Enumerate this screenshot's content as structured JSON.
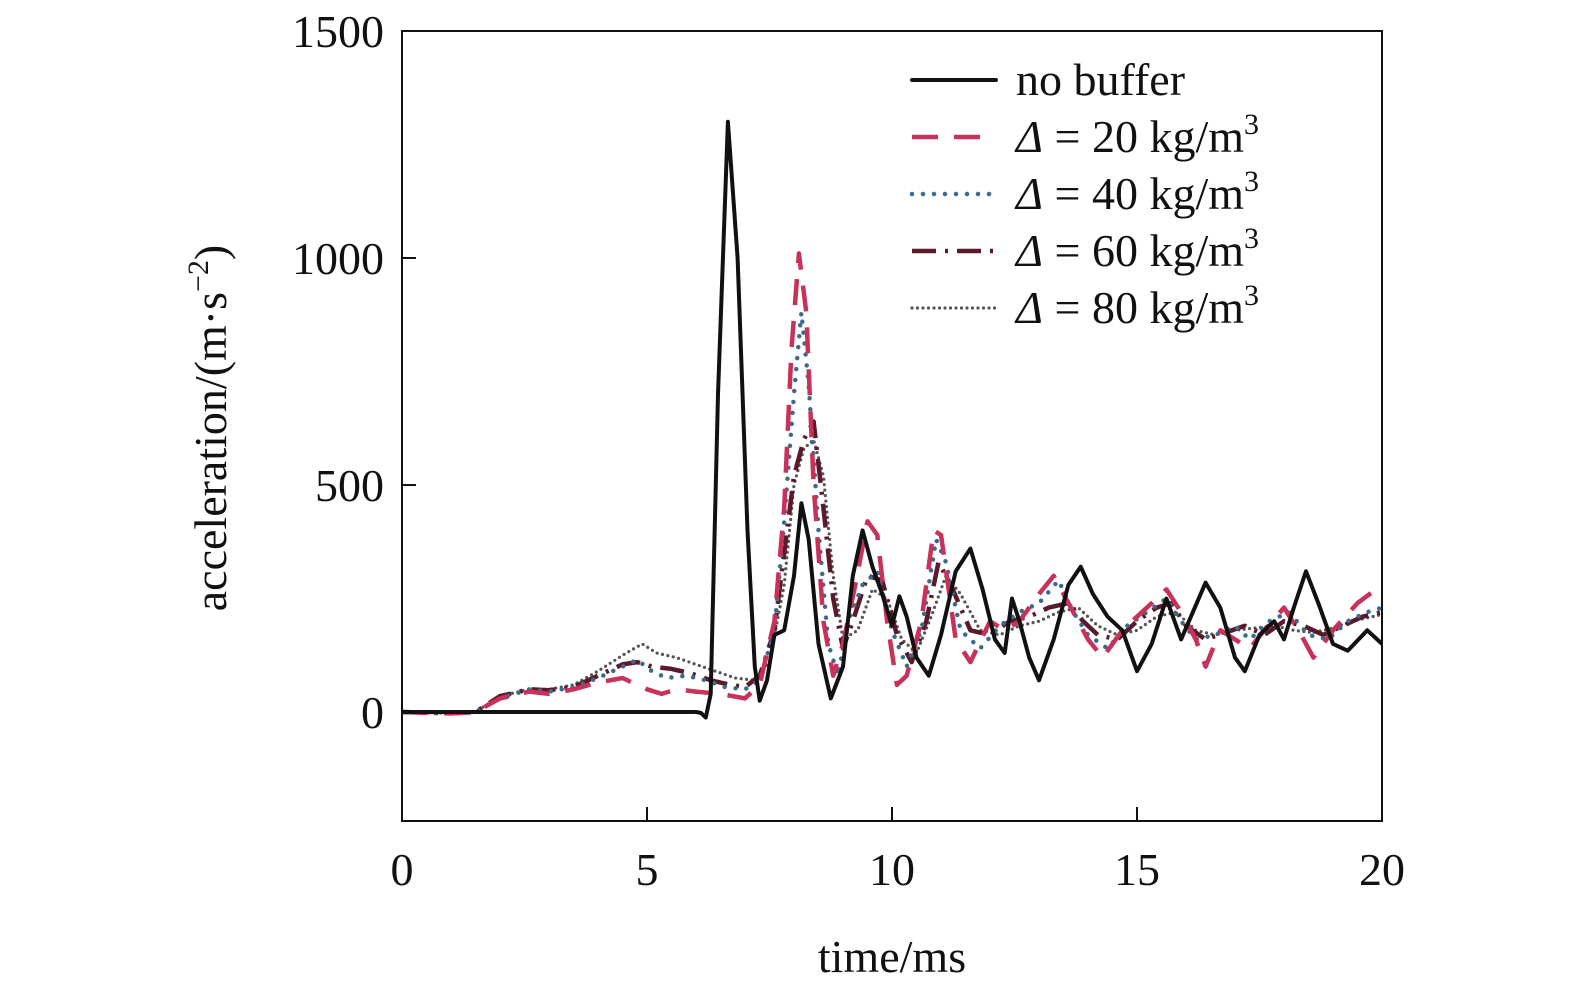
{
  "chart_data": {
    "type": "line",
    "title": "",
    "xlabel": "time/ms",
    "ylabel_text": "acceleration/(m·s",
    "ylabel_sup": "−2",
    "ylabel_close": ")",
    "xlim": [
      0,
      20
    ],
    "ylim": [
      -240,
      1500
    ],
    "x_ticks": [
      0,
      5,
      10,
      15,
      20
    ],
    "y_ticks": [
      0,
      500,
      1000,
      1500
    ],
    "x_tick_labels": [
      "0",
      "5",
      "10",
      "15",
      "20"
    ],
    "y_tick_labels": [
      "0",
      "500",
      "1000",
      "1500"
    ],
    "grid": false,
    "legend_position": "top-right",
    "series": [
      {
        "name": "no buffer",
        "legend_prefix": "",
        "legend_sup": "",
        "color": "#111111",
        "style": "solid",
        "points": [
          [
            0,
            0
          ],
          [
            6,
            0
          ],
          [
            6.1,
            -2
          ],
          [
            6.2,
            -12
          ],
          [
            6.3,
            40
          ],
          [
            6.45,
            700
          ],
          [
            6.65,
            1300
          ],
          [
            6.85,
            1000
          ],
          [
            7.05,
            400
          ],
          [
            7.2,
            100
          ],
          [
            7.3,
            25
          ],
          [
            7.45,
            70
          ],
          [
            7.6,
            170
          ],
          [
            7.8,
            180
          ],
          [
            8.0,
            300
          ],
          [
            8.15,
            460
          ],
          [
            8.3,
            380
          ],
          [
            8.5,
            150
          ],
          [
            8.75,
            30
          ],
          [
            9.0,
            100
          ],
          [
            9.2,
            300
          ],
          [
            9.4,
            400
          ],
          [
            9.6,
            320
          ],
          [
            9.8,
            260
          ],
          [
            10.0,
            190
          ],
          [
            10.15,
            255
          ],
          [
            10.3,
            210
          ],
          [
            10.5,
            120
          ],
          [
            10.75,
            80
          ],
          [
            11.0,
            170
          ],
          [
            11.3,
            310
          ],
          [
            11.6,
            360
          ],
          [
            11.85,
            270
          ],
          [
            12.1,
            160
          ],
          [
            12.3,
            130
          ],
          [
            12.45,
            250
          ],
          [
            12.6,
            200
          ],
          [
            12.8,
            120
          ],
          [
            13.0,
            70
          ],
          [
            13.3,
            160
          ],
          [
            13.6,
            280
          ],
          [
            13.85,
            320
          ],
          [
            14.1,
            260
          ],
          [
            14.4,
            210
          ],
          [
            14.7,
            180
          ],
          [
            15.0,
            90
          ],
          [
            15.3,
            150
          ],
          [
            15.6,
            250
          ],
          [
            15.9,
            160
          ],
          [
            16.1,
            210
          ],
          [
            16.4,
            285
          ],
          [
            16.7,
            230
          ],
          [
            17.0,
            120
          ],
          [
            17.2,
            90
          ],
          [
            17.5,
            170
          ],
          [
            17.8,
            200
          ],
          [
            18.0,
            160
          ],
          [
            18.2,
            230
          ],
          [
            18.45,
            310
          ],
          [
            18.7,
            240
          ],
          [
            19.0,
            150
          ],
          [
            19.3,
            135
          ],
          [
            19.7,
            180
          ],
          [
            20,
            150
          ]
        ]
      },
      {
        "name": " = 20 kg/m",
        "legend_prefix": "Δ",
        "legend_sup": "3",
        "color": "#c8325a",
        "style": "dashed",
        "points": [
          [
            0,
            0
          ],
          [
            1,
            -3
          ],
          [
            1.5,
            0
          ],
          [
            2,
            30
          ],
          [
            2.6,
            45
          ],
          [
            3,
            40
          ],
          [
            3.5,
            50
          ],
          [
            4,
            65
          ],
          [
            4.5,
            75
          ],
          [
            4.8,
            60
          ],
          [
            5,
            50
          ],
          [
            5.3,
            40
          ],
          [
            5.6,
            50
          ],
          [
            6,
            45
          ],
          [
            6.5,
            40
          ],
          [
            7,
            30
          ],
          [
            7.3,
            60
          ],
          [
            7.6,
            200
          ],
          [
            7.8,
            450
          ],
          [
            7.95,
            800
          ],
          [
            8.1,
            1010
          ],
          [
            8.25,
            880
          ],
          [
            8.4,
            500
          ],
          [
            8.6,
            200
          ],
          [
            8.8,
            80
          ],
          [
            9.0,
            150
          ],
          [
            9.25,
            280
          ],
          [
            9.5,
            420
          ],
          [
            9.7,
            390
          ],
          [
            9.9,
            200
          ],
          [
            10.1,
            60
          ],
          [
            10.3,
            80
          ],
          [
            10.6,
            200
          ],
          [
            10.85,
            400
          ],
          [
            11.0,
            390
          ],
          [
            11.3,
            160
          ],
          [
            11.6,
            110
          ],
          [
            12.0,
            200
          ],
          [
            12.3,
            180
          ],
          [
            12.6,
            200
          ],
          [
            13.0,
            260
          ],
          [
            13.3,
            300
          ],
          [
            13.6,
            240
          ],
          [
            14.0,
            160
          ],
          [
            14.3,
            120
          ],
          [
            14.7,
            180
          ],
          [
            15.0,
            210
          ],
          [
            15.3,
            240
          ],
          [
            15.6,
            270
          ],
          [
            15.9,
            220
          ],
          [
            16.2,
            160
          ],
          [
            16.4,
            100
          ],
          [
            16.7,
            180
          ],
          [
            17.0,
            160
          ],
          [
            17.3,
            140
          ],
          [
            17.6,
            180
          ],
          [
            18.0,
            230
          ],
          [
            18.4,
            160
          ],
          [
            18.6,
            120
          ],
          [
            19.0,
            180
          ],
          [
            19.5,
            240
          ],
          [
            20,
            280
          ]
        ]
      },
      {
        "name": " = 40 kg/m",
        "legend_prefix": "Δ",
        "legend_sup": "3",
        "color": "#3a6b8a",
        "style": "dotted",
        "points": [
          [
            0,
            0
          ],
          [
            1,
            -3
          ],
          [
            1.5,
            0
          ],
          [
            2,
            30
          ],
          [
            2.6,
            50
          ],
          [
            3,
            45
          ],
          [
            3.5,
            55
          ],
          [
            4,
            75
          ],
          [
            4.5,
            100
          ],
          [
            4.8,
            115
          ],
          [
            5.1,
            90
          ],
          [
            5.4,
            75
          ],
          [
            5.8,
            80
          ],
          [
            6.2,
            70
          ],
          [
            6.6,
            55
          ],
          [
            7,
            50
          ],
          [
            7.3,
            70
          ],
          [
            7.6,
            180
          ],
          [
            7.8,
            420
          ],
          [
            8.0,
            700
          ],
          [
            8.15,
            880
          ],
          [
            8.3,
            720
          ],
          [
            8.5,
            400
          ],
          [
            8.7,
            150
          ],
          [
            8.9,
            80
          ],
          [
            9.1,
            200
          ],
          [
            9.4,
            280
          ],
          [
            9.7,
            310
          ],
          [
            10.0,
            180
          ],
          [
            10.3,
            100
          ],
          [
            10.6,
            180
          ],
          [
            10.9,
            380
          ],
          [
            11.1,
            330
          ],
          [
            11.4,
            180
          ],
          [
            11.8,
            140
          ],
          [
            12.2,
            190
          ],
          [
            12.6,
            220
          ],
          [
            13.0,
            240
          ],
          [
            13.4,
            290
          ],
          [
            13.7,
            220
          ],
          [
            14.0,
            170
          ],
          [
            14.4,
            140
          ],
          [
            14.8,
            190
          ],
          [
            15.2,
            220
          ],
          [
            15.6,
            250
          ],
          [
            15.9,
            200
          ],
          [
            16.2,
            160
          ],
          [
            16.6,
            170
          ],
          [
            17.0,
            190
          ],
          [
            17.3,
            160
          ],
          [
            17.7,
            200
          ],
          [
            18.1,
            220
          ],
          [
            18.5,
            170
          ],
          [
            18.9,
            160
          ],
          [
            19.3,
            200
          ],
          [
            19.7,
            220
          ],
          [
            20,
            230
          ]
        ]
      },
      {
        "name": " = 60 kg/m",
        "legend_prefix": "Δ",
        "legend_sup": "3",
        "color": "#5a1a2a",
        "style": "dashdot",
        "points": [
          [
            0,
            0
          ],
          [
            1,
            -3
          ],
          [
            1.5,
            0
          ],
          [
            2,
            35
          ],
          [
            2.6,
            50
          ],
          [
            3,
            48
          ],
          [
            3.5,
            55
          ],
          [
            4,
            80
          ],
          [
            4.5,
            105
          ],
          [
            4.8,
            110
          ],
          [
            5.1,
            100
          ],
          [
            5.5,
            95
          ],
          [
            5.9,
            85
          ],
          [
            6.3,
            70
          ],
          [
            6.7,
            60
          ],
          [
            7.0,
            55
          ],
          [
            7.3,
            80
          ],
          [
            7.6,
            180
          ],
          [
            7.8,
            350
          ],
          [
            8.0,
            520
          ],
          [
            8.2,
            600
          ],
          [
            8.4,
            640
          ],
          [
            8.6,
            450
          ],
          [
            8.8,
            250
          ],
          [
            9.0,
            140
          ],
          [
            9.2,
            200
          ],
          [
            9.5,
            300
          ],
          [
            9.8,
            290
          ],
          [
            10.1,
            170
          ],
          [
            10.4,
            110
          ],
          [
            10.7,
            200
          ],
          [
            10.95,
            330
          ],
          [
            11.2,
            280
          ],
          [
            11.6,
            180
          ],
          [
            12.0,
            170
          ],
          [
            12.4,
            200
          ],
          [
            12.8,
            210
          ],
          [
            13.2,
            230
          ],
          [
            13.6,
            240
          ],
          [
            13.9,
            200
          ],
          [
            14.2,
            170
          ],
          [
            14.6,
            160
          ],
          [
            15.0,
            200
          ],
          [
            15.4,
            230
          ],
          [
            15.7,
            240
          ],
          [
            16.0,
            190
          ],
          [
            16.4,
            160
          ],
          [
            16.8,
            175
          ],
          [
            17.2,
            190
          ],
          [
            17.6,
            170
          ],
          [
            18.0,
            200
          ],
          [
            18.4,
            190
          ],
          [
            18.8,
            170
          ],
          [
            19.2,
            190
          ],
          [
            19.6,
            210
          ],
          [
            20,
            220
          ]
        ]
      },
      {
        "name": " = 80 kg/m",
        "legend_prefix": "Δ",
        "legend_sup": "3",
        "color": "#555555",
        "style": "finedotted",
        "points": [
          [
            0,
            0
          ],
          [
            1,
            -3
          ],
          [
            1.5,
            0
          ],
          [
            2,
            35
          ],
          [
            2.6,
            50
          ],
          [
            3,
            50
          ],
          [
            3.5,
            60
          ],
          [
            4,
            90
          ],
          [
            4.5,
            125
          ],
          [
            4.9,
            150
          ],
          [
            5.2,
            130
          ],
          [
            5.6,
            120
          ],
          [
            6.0,
            105
          ],
          [
            6.4,
            90
          ],
          [
            6.8,
            75
          ],
          [
            7.2,
            70
          ],
          [
            7.5,
            110
          ],
          [
            7.8,
            280
          ],
          [
            8.0,
            500
          ],
          [
            8.2,
            580
          ],
          [
            8.4,
            600
          ],
          [
            8.6,
            520
          ],
          [
            8.8,
            300
          ],
          [
            9.0,
            160
          ],
          [
            9.3,
            180
          ],
          [
            9.6,
            270
          ],
          [
            9.9,
            250
          ],
          [
            10.2,
            160
          ],
          [
            10.5,
            130
          ],
          [
            10.8,
            210
          ],
          [
            11.1,
            300
          ],
          [
            11.4,
            260
          ],
          [
            11.8,
            180
          ],
          [
            12.2,
            170
          ],
          [
            12.6,
            190
          ],
          [
            13.0,
            200
          ],
          [
            13.4,
            220
          ],
          [
            13.8,
            230
          ],
          [
            14.2,
            190
          ],
          [
            14.6,
            170
          ],
          [
            15.0,
            180
          ],
          [
            15.4,
            210
          ],
          [
            15.8,
            220
          ],
          [
            16.2,
            180
          ],
          [
            16.6,
            170
          ],
          [
            17.0,
            180
          ],
          [
            17.4,
            185
          ],
          [
            17.8,
            190
          ],
          [
            18.2,
            180
          ],
          [
            18.6,
            175
          ],
          [
            19.0,
            185
          ],
          [
            19.4,
            200
          ],
          [
            19.8,
            210
          ],
          [
            20,
            215
          ]
        ]
      }
    ]
  }
}
